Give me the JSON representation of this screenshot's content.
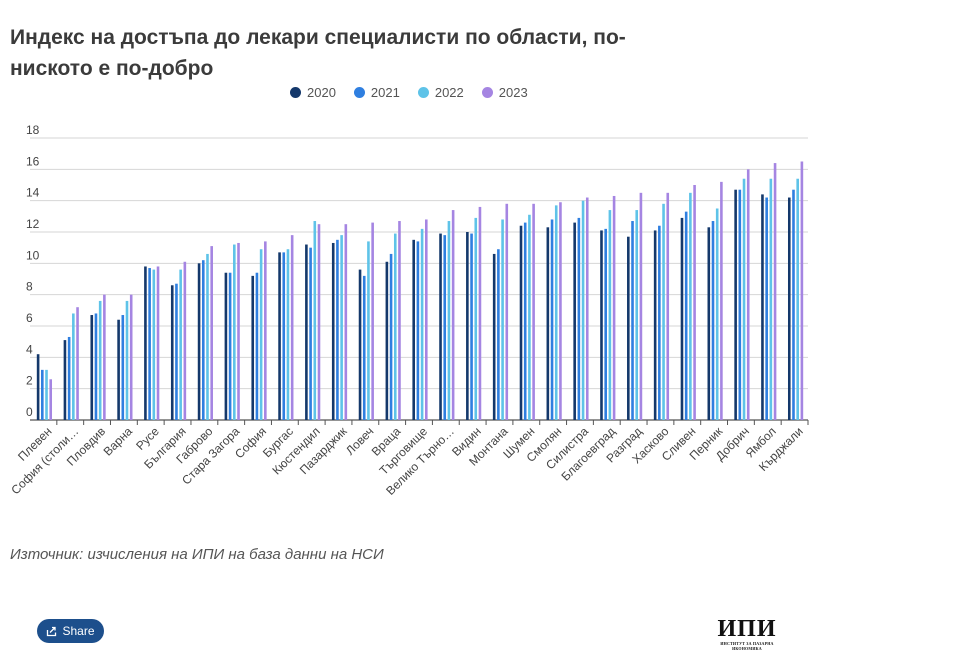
{
  "title": "Индекс на достъпа до лекари специалисти по области, по-ниското е по-добро",
  "source": "Източник: изчисления на ИПИ на база данни на НСИ",
  "share_label": "Share",
  "logo": {
    "text": "ИПИ",
    "subtext": "ИНСТИТУТ ЗА ПАЗАРНА ИКОНОМИКА"
  },
  "colors": {
    "2020": "#14386b",
    "2021": "#2f7fe0",
    "2022": "#5ec3e8",
    "2023": "#a585e2"
  },
  "chart_data": {
    "type": "bar",
    "title": "Индекс на достъпа до лекари специалисти по области, по-ниското е по-добро",
    "ylim": [
      0,
      18
    ],
    "yticks": [
      "0",
      "2",
      "4",
      "6",
      "8",
      "10",
      "12",
      "14",
      "16",
      "18"
    ],
    "grid": true,
    "legend_position": "top",
    "categories": [
      "Плевен",
      "София (столи…",
      "Пловдив",
      "Варна",
      "Русе",
      "България",
      "Габрово",
      "Стара Загора",
      "София",
      "Бургас",
      "Кюстендил",
      "Пазарджик",
      "Ловеч",
      "Враца",
      "Търговище",
      "Велико Търно…",
      "Видин",
      "Монтана",
      "Шумен",
      "Смолян",
      "Силистра",
      "Благоевград",
      "Разград",
      "Хасково",
      "Сливен",
      "Перник",
      "Добрич",
      "Ямбол",
      "Кърджали"
    ],
    "series": [
      {
        "name": "2020",
        "values": [
          4.2,
          5.1,
          6.7,
          6.4,
          9.8,
          8.6,
          10.0,
          9.4,
          9.2,
          10.7,
          11.2,
          11.3,
          9.6,
          10.1,
          11.5,
          11.9,
          12.0,
          10.6,
          12.4,
          12.3,
          12.6,
          12.1,
          11.7,
          12.1,
          12.9,
          12.3,
          14.7,
          14.4,
          14.2
        ]
      },
      {
        "name": "2021",
        "values": [
          3.2,
          5.3,
          6.8,
          6.7,
          9.7,
          8.7,
          10.2,
          9.4,
          9.4,
          10.7,
          11.0,
          11.5,
          9.2,
          10.6,
          11.4,
          11.8,
          11.9,
          10.9,
          12.6,
          12.8,
          12.9,
          12.2,
          12.7,
          12.4,
          13.3,
          12.7,
          14.7,
          14.2,
          14.7
        ]
      },
      {
        "name": "2022",
        "values": [
          3.2,
          6.8,
          7.6,
          7.6,
          9.6,
          9.6,
          10.6,
          11.2,
          10.9,
          10.9,
          12.7,
          11.8,
          11.4,
          11.9,
          12.2,
          12.7,
          12.9,
          12.8,
          13.1,
          13.7,
          14.0,
          13.4,
          13.4,
          13.8,
          14.5,
          13.5,
          15.4,
          15.4,
          15.4
        ]
      },
      {
        "name": "2023",
        "values": [
          2.6,
          7.2,
          8.0,
          8.0,
          9.8,
          10.1,
          11.1,
          11.3,
          11.4,
          11.8,
          12.5,
          12.5,
          12.6,
          12.7,
          12.8,
          13.4,
          13.6,
          13.8,
          13.8,
          13.9,
          14.2,
          14.3,
          14.5,
          14.5,
          15.0,
          15.2,
          16.0,
          16.4,
          16.5
        ]
      }
    ]
  }
}
